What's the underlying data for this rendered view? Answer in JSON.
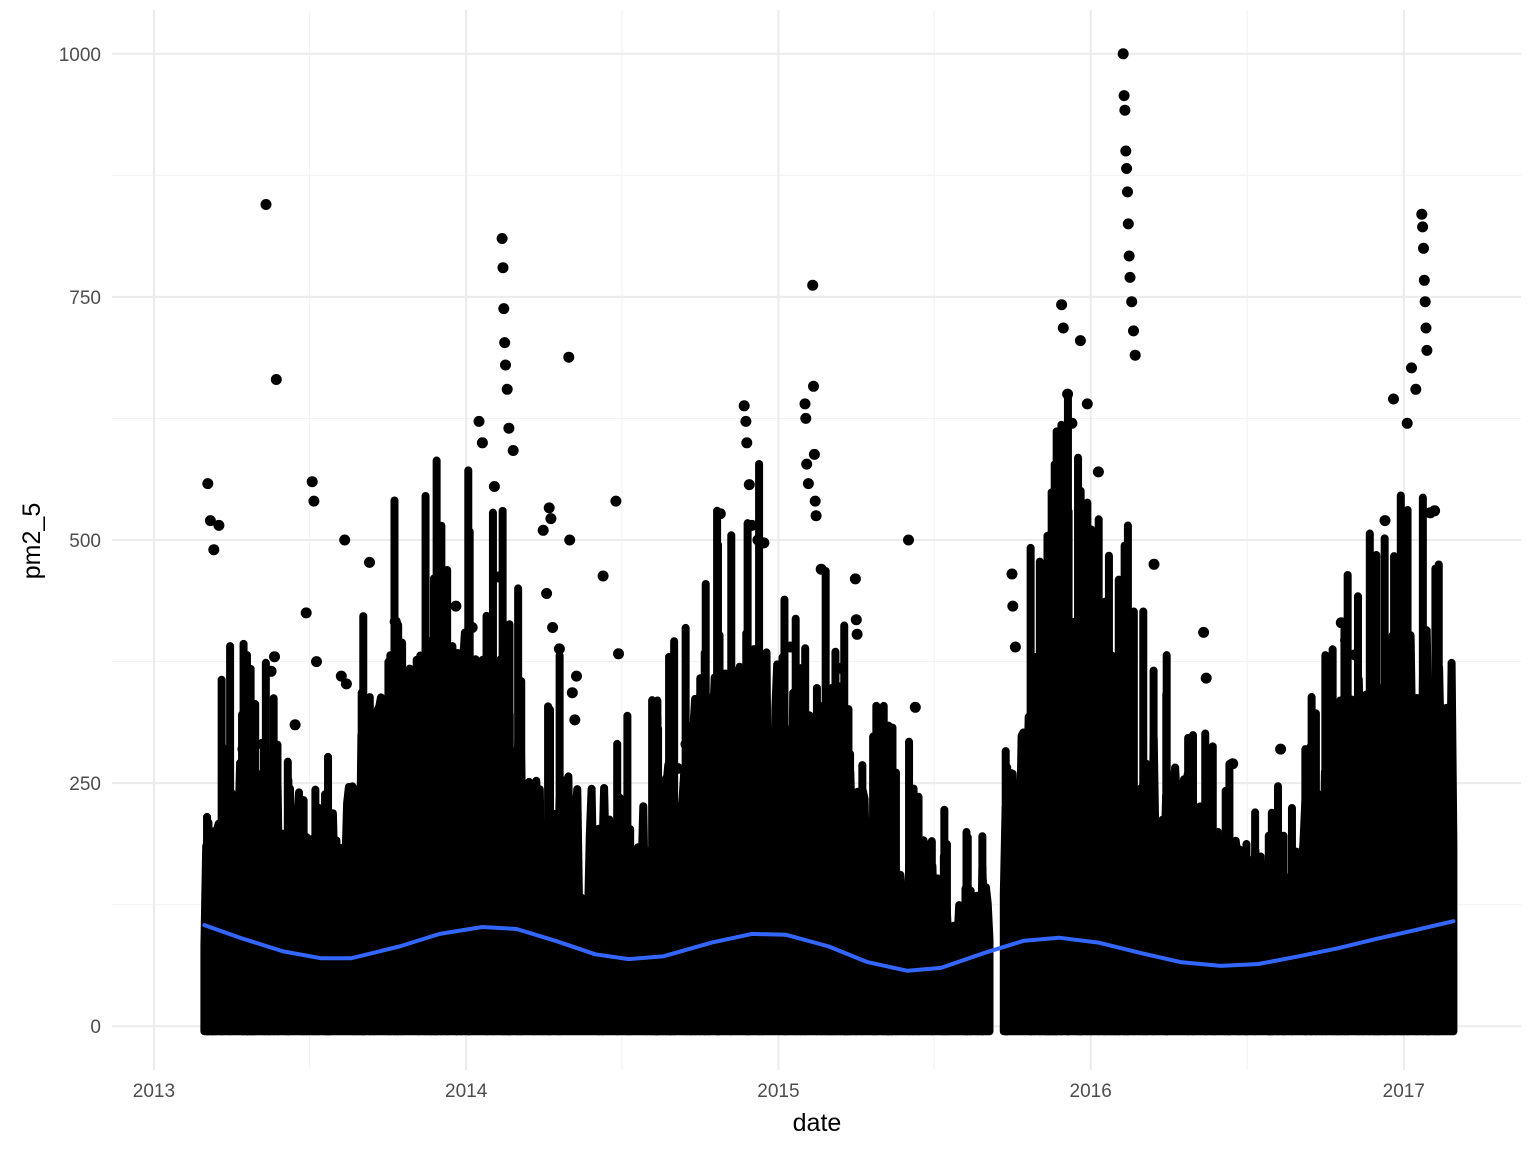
{
  "chart_data": {
    "type": "scatter",
    "title": "",
    "xlabel": "date",
    "ylabel": "pm2_5",
    "x_ticks": [
      "2013",
      "2014",
      "2015",
      "2016",
      "2017"
    ],
    "y_ticks": [
      0,
      250,
      500,
      750,
      1000
    ],
    "xlim": [
      "2012-11-13",
      "2017-05-18"
    ],
    "ylim": [
      -45,
      1045
    ],
    "grid": true,
    "legend": "none",
    "colors": {
      "points": "#000000",
      "smooth": "#3366ff",
      "grid_major": "#ebebeb",
      "grid_minor": "#f3f3f3"
    },
    "point_density": {
      "x_range": [
        "2013-03-01",
        "2017-02-28"
      ],
      "note_missing_gap": [
        "2015-09-05",
        "2015-09-20"
      ],
      "baseline_upper": [
        [
          "2013-03-01",
          150
        ],
        [
          "2013-04-01",
          230
        ],
        [
          "2013-06-01",
          210
        ],
        [
          "2013-08-01",
          180
        ],
        [
          "2013-10-01",
          300
        ],
        [
          "2013-12-01",
          330
        ],
        [
          "2014-02-01",
          320
        ],
        [
          "2014-04-01",
          220
        ],
        [
          "2014-06-01",
          200
        ],
        [
          "2014-08-01",
          180
        ],
        [
          "2014-10-01",
          280
        ],
        [
          "2014-12-01",
          330
        ],
        [
          "2015-02-01",
          300
        ],
        [
          "2015-04-01",
          210
        ],
        [
          "2015-06-01",
          170
        ],
        [
          "2015-08-20",
          110
        ],
        [
          "2015-10-01",
          230
        ],
        [
          "2015-12-01",
          370
        ],
        [
          "2016-02-01",
          310
        ],
        [
          "2016-04-01",
          240
        ],
        [
          "2016-06-01",
          160
        ],
        [
          "2016-08-01",
          140
        ],
        [
          "2016-10-01",
          230
        ],
        [
          "2016-12-01",
          320
        ],
        [
          "2017-02-28",
          330
        ]
      ]
    },
    "series": [
      {
        "type": "points-outliers",
        "points": [
          [
            "2013-03-05",
            558
          ],
          [
            "2013-03-08",
            520
          ],
          [
            "2013-03-12",
            490
          ],
          [
            "2013-03-18",
            515
          ],
          [
            "2013-04-15",
            285
          ],
          [
            "2013-04-25",
            290
          ],
          [
            "2013-05-08",
            290
          ],
          [
            "2013-05-12",
            845
          ],
          [
            "2013-05-18",
            365
          ],
          [
            "2013-05-22",
            380
          ],
          [
            "2013-05-24",
            665
          ],
          [
            "2013-06-15",
            310
          ],
          [
            "2013-06-28",
            425
          ],
          [
            "2013-07-05",
            560
          ],
          [
            "2013-07-07",
            540
          ],
          [
            "2013-07-10",
            375
          ],
          [
            "2013-08-08",
            360
          ],
          [
            "2013-08-12",
            500
          ],
          [
            "2013-08-14",
            352
          ],
          [
            "2013-09-10",
            477
          ],
          [
            "2013-10-10",
            416
          ],
          [
            "2013-12-05",
            465
          ],
          [
            "2013-12-20",
            432
          ],
          [
            "2014-01-08",
            410
          ],
          [
            "2014-01-16",
            622
          ],
          [
            "2014-01-20",
            600
          ],
          [
            "2014-02-03",
            555
          ],
          [
            "2014-02-08",
            462
          ],
          [
            "2014-02-12",
            810
          ],
          [
            "2014-02-13",
            780
          ],
          [
            "2014-02-14",
            738
          ],
          [
            "2014-02-15",
            703
          ],
          [
            "2014-02-16",
            680
          ],
          [
            "2014-02-18",
            655
          ],
          [
            "2014-02-20",
            615
          ],
          [
            "2014-02-25",
            592
          ],
          [
            "2014-04-01",
            510
          ],
          [
            "2014-04-05",
            445
          ],
          [
            "2014-04-08",
            533
          ],
          [
            "2014-04-10",
            522
          ],
          [
            "2014-04-12",
            410
          ],
          [
            "2014-04-20",
            388
          ],
          [
            "2014-05-02",
            500
          ],
          [
            "2014-05-01",
            688
          ],
          [
            "2014-05-05",
            343
          ],
          [
            "2014-05-08",
            315
          ],
          [
            "2014-05-10",
            360
          ],
          [
            "2014-06-10",
            463
          ],
          [
            "2014-06-25",
            540
          ],
          [
            "2014-06-28",
            383
          ],
          [
            "2014-09-05",
            265
          ],
          [
            "2014-09-15",
            290
          ],
          [
            "2014-10-25",
            527
          ],
          [
            "2014-11-22",
            638
          ],
          [
            "2014-11-24",
            622
          ],
          [
            "2014-11-25",
            600
          ],
          [
            "2014-11-28",
            557
          ],
          [
            "2014-12-01",
            515
          ],
          [
            "2014-12-08",
            500
          ],
          [
            "2014-12-15",
            497
          ],
          [
            "2015-01-15",
            390
          ],
          [
            "2015-01-28",
            340
          ],
          [
            "2015-02-01",
            640
          ],
          [
            "2015-02-02",
            625
          ],
          [
            "2015-02-03",
            578
          ],
          [
            "2015-02-05",
            558
          ],
          [
            "2015-02-10",
            762
          ],
          [
            "2015-02-11",
            658
          ],
          [
            "2015-02-12",
            588
          ],
          [
            "2015-02-13",
            540
          ],
          [
            "2015-02-14",
            525
          ],
          [
            "2015-02-20",
            470
          ],
          [
            "2015-03-15",
            368
          ],
          [
            "2015-04-01",
            460
          ],
          [
            "2015-04-02",
            418
          ],
          [
            "2015-04-03",
            403
          ],
          [
            "2015-06-02",
            500
          ],
          [
            "2015-06-10",
            328
          ],
          [
            "2015-10-01",
            465
          ],
          [
            "2015-10-02",
            432
          ],
          [
            "2015-10-05",
            390
          ],
          [
            "2015-11-28",
            742
          ],
          [
            "2015-11-30",
            718
          ],
          [
            "2015-12-05",
            650
          ],
          [
            "2015-12-10",
            620
          ],
          [
            "2015-12-20",
            705
          ],
          [
            "2015-12-28",
            640
          ],
          [
            "2016-01-10",
            570
          ],
          [
            "2016-01-25",
            352
          ],
          [
            "2016-01-28",
            330
          ],
          [
            "2016-02-08",
            1000
          ],
          [
            "2016-02-09",
            957
          ],
          [
            "2016-02-10",
            942
          ],
          [
            "2016-02-11",
            900
          ],
          [
            "2016-02-12",
            882
          ],
          [
            "2016-02-13",
            858
          ],
          [
            "2016-02-14",
            825
          ],
          [
            "2016-02-15",
            792
          ],
          [
            "2016-02-16",
            770
          ],
          [
            "2016-02-18",
            745
          ],
          [
            "2016-02-20",
            715
          ],
          [
            "2016-02-22",
            690
          ],
          [
            "2016-03-15",
            475
          ],
          [
            "2016-05-12",
            405
          ],
          [
            "2016-05-15",
            358
          ],
          [
            "2016-06-15",
            270
          ],
          [
            "2016-08-10",
            285
          ],
          [
            "2016-10-20",
            415
          ],
          [
            "2016-10-25",
            397
          ],
          [
            "2016-11-05",
            382
          ],
          [
            "2016-12-10",
            520
          ],
          [
            "2016-12-20",
            645
          ],
          [
            "2017-01-05",
            620
          ],
          [
            "2017-01-10",
            677
          ],
          [
            "2017-01-15",
            655
          ],
          [
            "2017-01-22",
            835
          ],
          [
            "2017-01-23",
            822
          ],
          [
            "2017-01-24",
            800
          ],
          [
            "2017-01-25",
            767
          ],
          [
            "2017-01-26",
            745
          ],
          [
            "2017-01-27",
            718
          ],
          [
            "2017-01-28",
            695
          ],
          [
            "2017-02-01",
            528
          ],
          [
            "2017-02-06",
            530
          ]
        ]
      },
      {
        "type": "smooth-line",
        "points": [
          [
            "2013-03-01",
            104
          ],
          [
            "2013-04-15",
            90
          ],
          [
            "2013-06-01",
            77
          ],
          [
            "2013-07-15",
            70
          ],
          [
            "2013-08-20",
            70
          ],
          [
            "2013-10-15",
            82
          ],
          [
            "2013-12-01",
            95
          ],
          [
            "2014-01-20",
            102
          ],
          [
            "2014-03-01",
            100
          ],
          [
            "2014-04-15",
            88
          ],
          [
            "2014-06-01",
            74
          ],
          [
            "2014-07-10",
            69
          ],
          [
            "2014-08-20",
            72
          ],
          [
            "2014-10-15",
            86
          ],
          [
            "2014-12-01",
            95
          ],
          [
            "2015-01-10",
            94
          ],
          [
            "2015-03-01",
            82
          ],
          [
            "2015-04-15",
            66
          ],
          [
            "2015-06-01",
            57
          ],
          [
            "2015-07-10",
            60
          ],
          [
            "2015-09-01",
            76
          ],
          [
            "2015-10-15",
            88
          ],
          [
            "2015-11-25",
            91
          ],
          [
            "2016-01-10",
            86
          ],
          [
            "2016-03-01",
            75
          ],
          [
            "2016-04-15",
            66
          ],
          [
            "2016-06-01",
            62
          ],
          [
            "2016-07-15",
            64
          ],
          [
            "2016-09-01",
            72
          ],
          [
            "2016-10-15",
            80
          ],
          [
            "2016-12-01",
            90
          ],
          [
            "2017-01-15",
            99
          ],
          [
            "2017-02-28",
            108
          ]
        ]
      }
    ]
  }
}
